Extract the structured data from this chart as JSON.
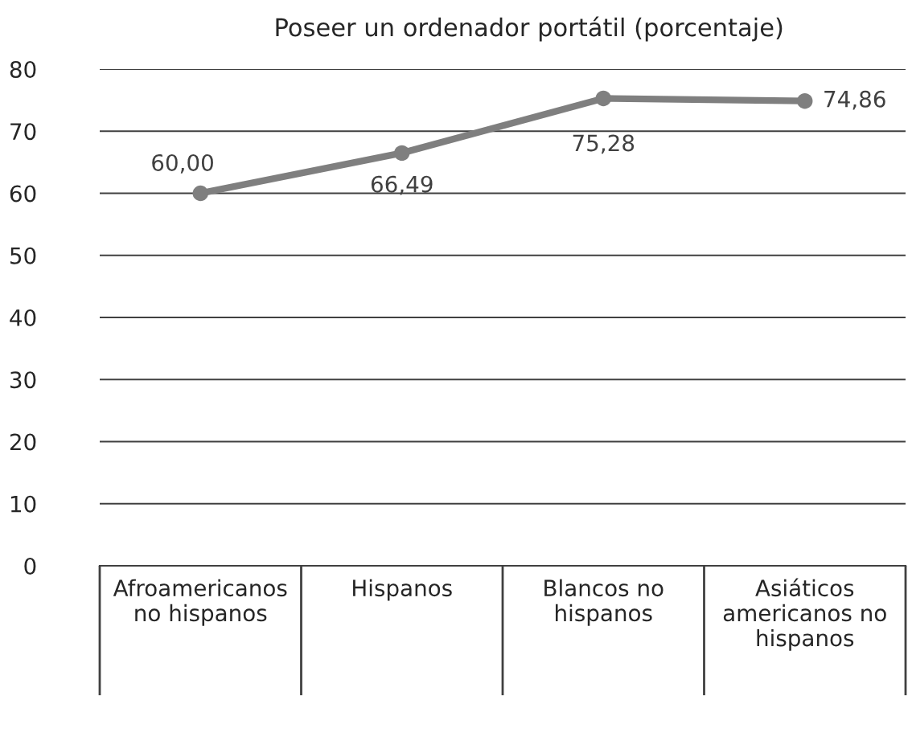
{
  "chart_data": {
    "type": "line",
    "title": "Poseer un ordenador portátil (porcentaje)",
    "categories": [
      "Afroamericanos no hispanos",
      "Hispanos",
      "Blancos no hispanos",
      "Asiáticos americanos no hispanos"
    ],
    "series": [
      {
        "color": "#7f7f7f",
        "values": [
          60.0,
          66.49,
          75.28,
          74.86
        ],
        "value_labels": [
          "60,00",
          "66,49",
          "75,28",
          "74,86"
        ]
      }
    ],
    "ylim": [
      0,
      80
    ],
    "yticks": [
      0,
      10,
      20,
      30,
      40,
      50,
      60,
      70,
      80
    ],
    "grid": "y",
    "marker": "circle",
    "line_style": "solid"
  }
}
